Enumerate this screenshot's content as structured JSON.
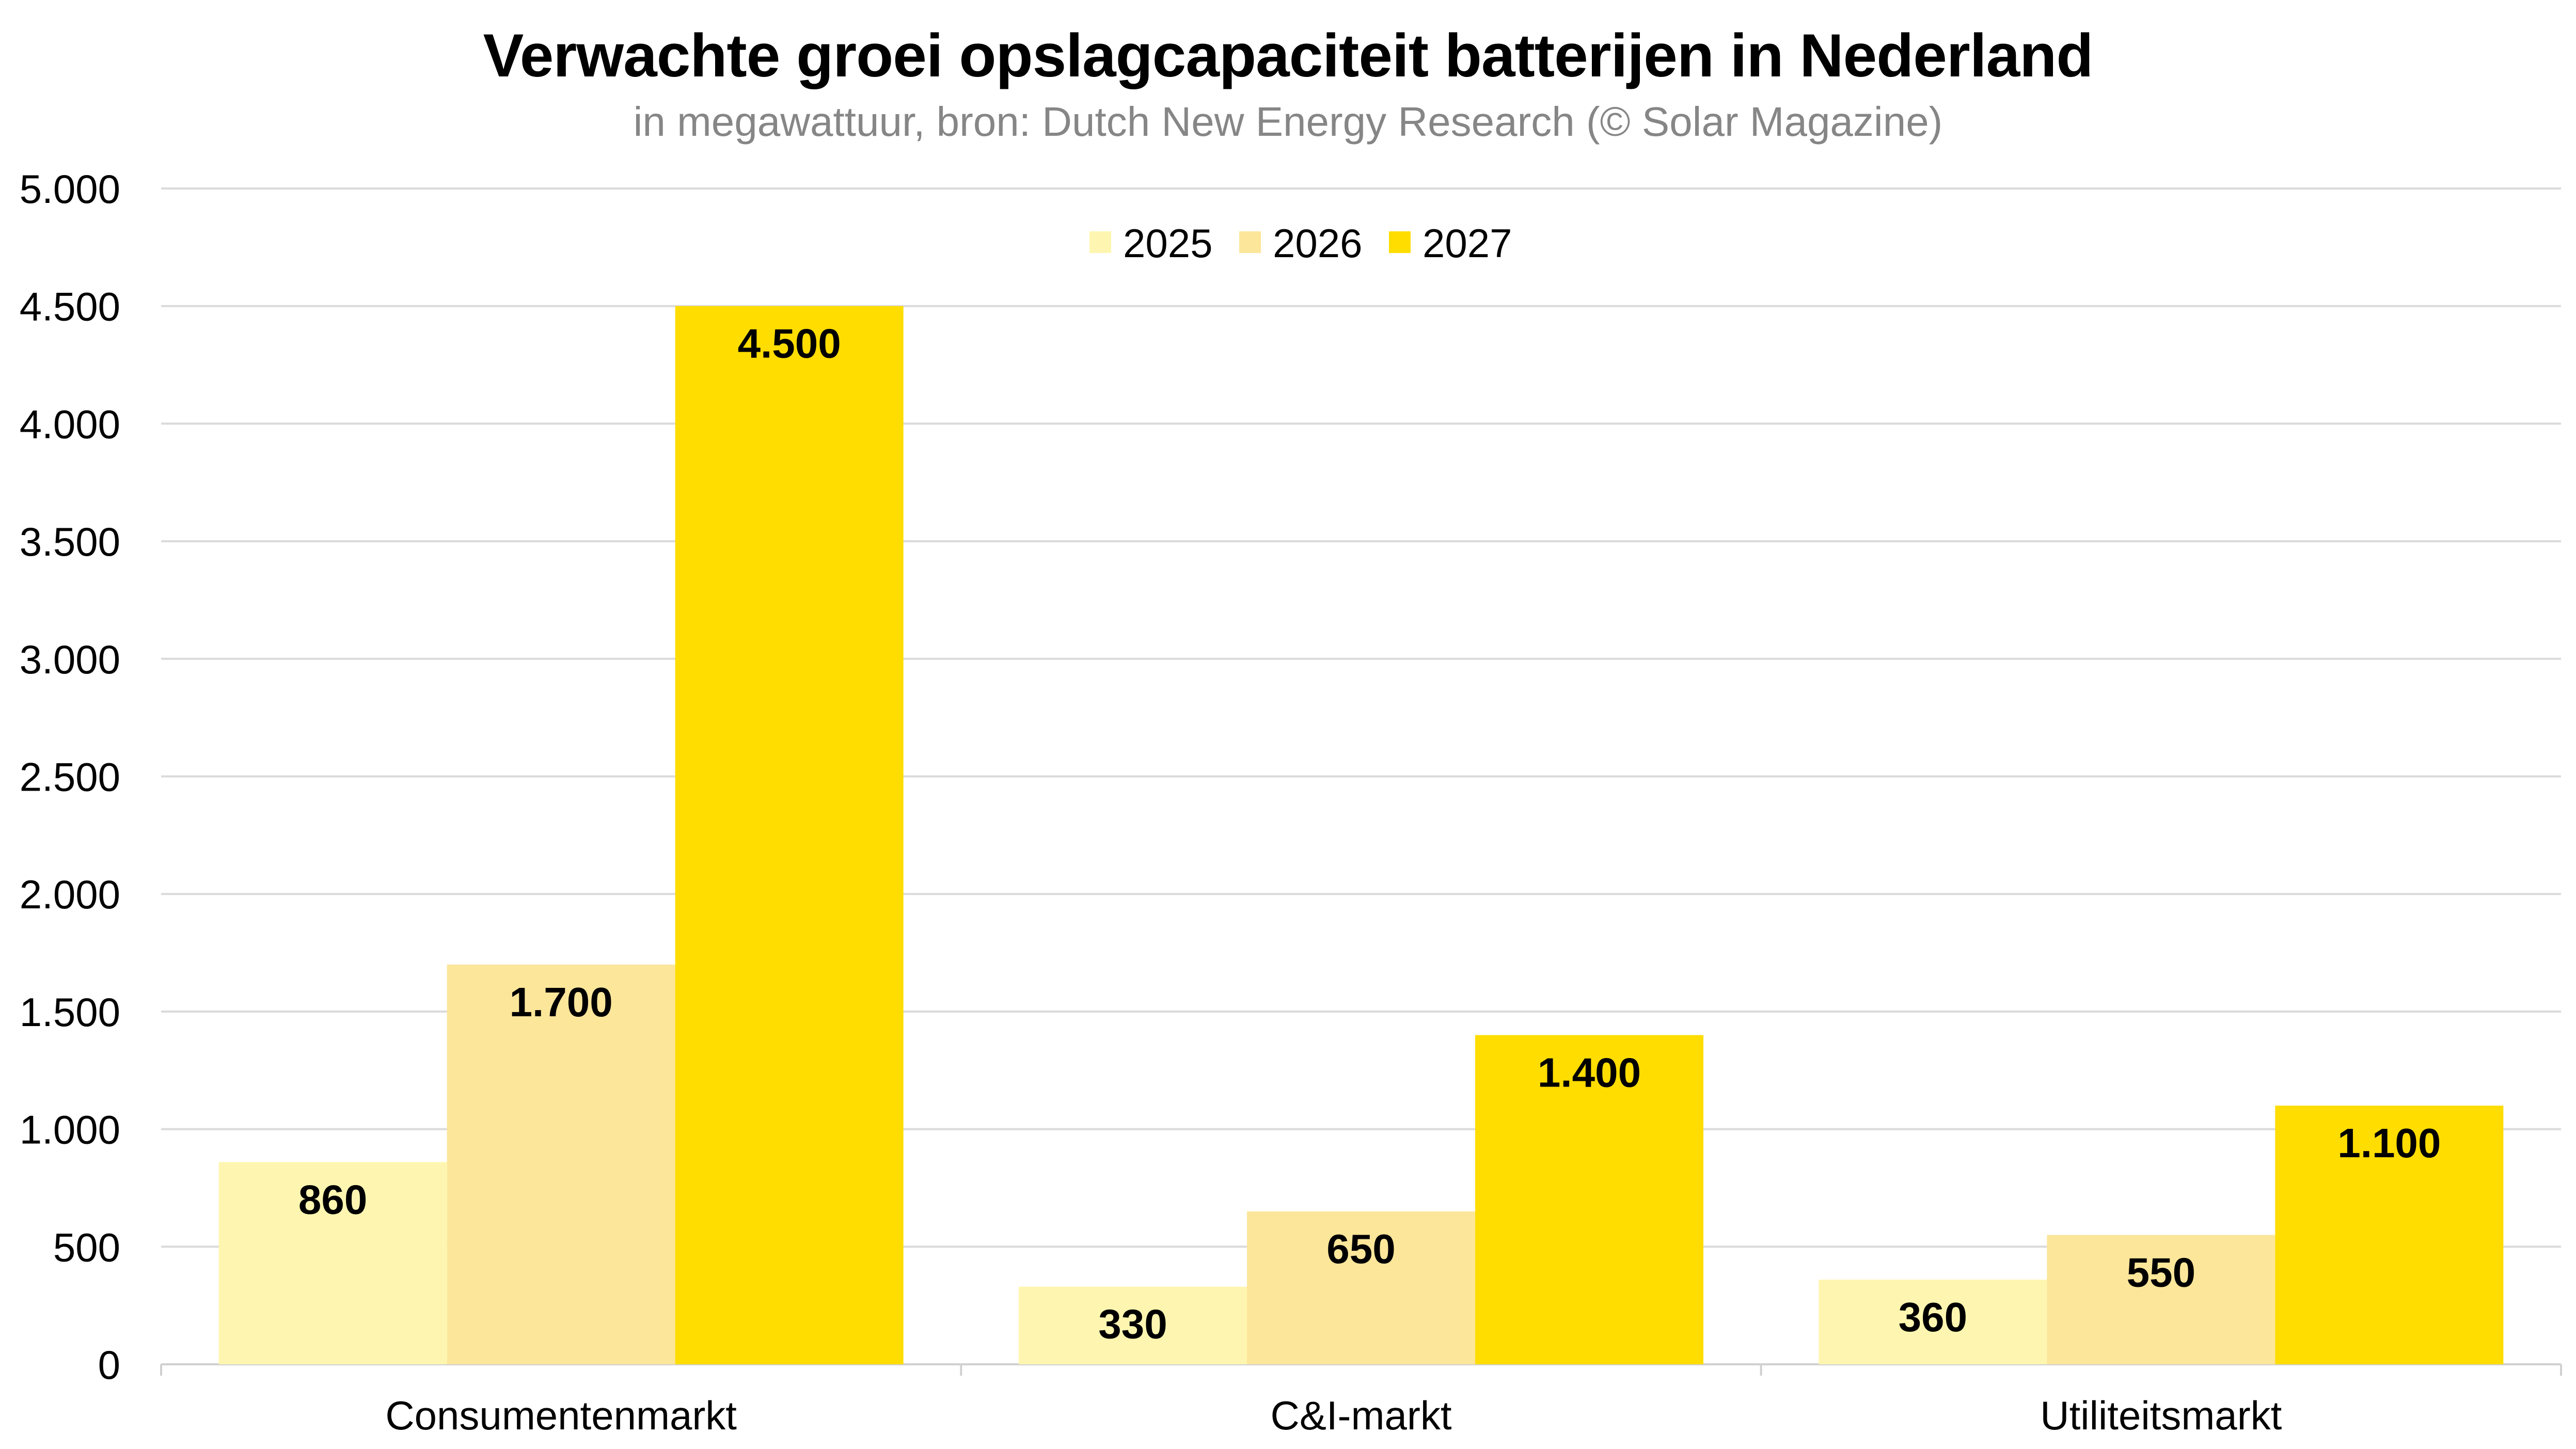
{
  "header": {
    "title": "Verwachte groei opslagcapaciteit batterijen in Nederland",
    "subtitle": "in megawattuur, bron: Dutch New Energy Research (© Solar Magazine)"
  },
  "chart_data": {
    "type": "bar",
    "title": "Verwachte groei opslagcapaciteit batterijen in Nederland",
    "subtitle": "in megawattuur, bron: Dutch New Energy Research (© Solar Magazine)",
    "xlabel": "",
    "ylabel": "",
    "categories": [
      "Consumentenmarkt",
      "C&I-markt",
      "Utiliteitsmarkt"
    ],
    "series": [
      {
        "name": "2025",
        "color": "#FEF6B0",
        "values": [
          860,
          330,
          360
        ],
        "labels": [
          "860",
          "330",
          "360"
        ]
      },
      {
        "name": "2026",
        "color": "#FCE69A",
        "values": [
          1700,
          650,
          550
        ],
        "labels": [
          "1.700",
          "650",
          "550"
        ]
      },
      {
        "name": "2027",
        "color": "#FFDD00",
        "values": [
          4500,
          1400,
          1100
        ],
        "labels": [
          "4.500",
          "1.400",
          "1.100"
        ]
      }
    ],
    "ylim": [
      0,
      5000
    ],
    "yticks": [
      0,
      500,
      1000,
      1500,
      2000,
      2500,
      3000,
      3500,
      4000,
      4500,
      5000
    ],
    "ytick_labels": [
      "0",
      "500",
      "1.000",
      "1.500",
      "2.000",
      "2.500",
      "3.000",
      "3.500",
      "4.000",
      "4.500",
      "5.000"
    ],
    "grid": true,
    "gridline_color": "#DADADA",
    "legend_position": "top-center"
  }
}
